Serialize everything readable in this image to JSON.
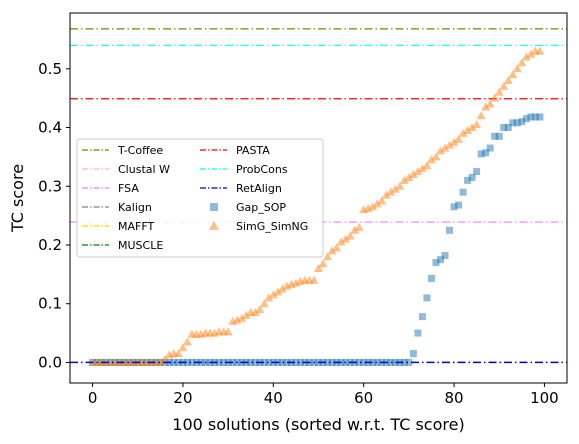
{
  "chart_data": {
    "type": "scatter",
    "xlabel": "100 solutions (sorted w.r.t. TC score)",
    "ylabel": "TC score",
    "xlim": [
      -5,
      105
    ],
    "ylim": [
      -0.035,
      0.595
    ],
    "x_ticks": [
      0,
      20,
      40,
      60,
      80,
      100
    ],
    "y_ticks": [
      0.0,
      0.1,
      0.2,
      0.3,
      0.4,
      0.5
    ],
    "x_tick_labels": [
      "0",
      "20",
      "40",
      "60",
      "80",
      "100"
    ],
    "y_tick_labels": [
      "0.0",
      "0.1",
      "0.2",
      "0.3",
      "0.4",
      "0.5"
    ],
    "grid": false,
    "legend_position": "center-left",
    "reference_lines": [
      {
        "name": "T-Coffee",
        "y": 0.568,
        "color": "#808000",
        "dash": "dashdot"
      },
      {
        "name": "Clustal W",
        "y": 0.0,
        "color": "#ffb6c1",
        "dash": "dashdot"
      },
      {
        "name": "FSA",
        "y": 0.239,
        "color": "#ee82ee",
        "dash": "dashdot"
      },
      {
        "name": "Kalign",
        "y": 0.0,
        "color": "#808080",
        "dash": "dashdot"
      },
      {
        "name": "MAFFT",
        "y": 0.0,
        "color": "#ffd700",
        "dash": "dashdot"
      },
      {
        "name": "MUSCLE",
        "y": 0.0,
        "color": "#008000",
        "dash": "dashdot"
      },
      {
        "name": "PASTA",
        "y": 0.449,
        "color": "#ff0000",
        "dash": "dashdot"
      },
      {
        "name": "ProbCons",
        "y": 0.54,
        "color": "#00ffff",
        "dash": "dashdot"
      },
      {
        "name": "RetAlign",
        "y": 0.0,
        "color": "#0000cd",
        "dash": "dashdot"
      }
    ],
    "series": [
      {
        "name": "Gap_SOP",
        "marker": "square",
        "color": "#1f77b4",
        "x": [
          0,
          1,
          2,
          3,
          4,
          5,
          6,
          7,
          8,
          9,
          10,
          11,
          12,
          13,
          14,
          15,
          16,
          17,
          18,
          19,
          20,
          21,
          22,
          23,
          24,
          25,
          26,
          27,
          28,
          29,
          30,
          31,
          32,
          33,
          34,
          35,
          36,
          37,
          38,
          39,
          40,
          41,
          42,
          43,
          44,
          45,
          46,
          47,
          48,
          49,
          50,
          51,
          52,
          53,
          54,
          55,
          56,
          57,
          58,
          59,
          60,
          61,
          62,
          63,
          64,
          65,
          66,
          67,
          68,
          69,
          70,
          71,
          72,
          73,
          74,
          75,
          76,
          77,
          78,
          79,
          80,
          81,
          82,
          83,
          84,
          85,
          86,
          87,
          88,
          89,
          90,
          91,
          92,
          93,
          94,
          95,
          96,
          97,
          98,
          99
        ],
        "y": [
          0,
          0,
          0,
          0,
          0,
          0,
          0,
          0,
          0,
          0,
          0,
          0,
          0,
          0,
          0,
          0,
          0,
          0,
          0,
          0,
          0,
          0,
          0,
          0,
          0,
          0,
          0,
          0,
          0,
          0,
          0,
          0,
          0,
          0,
          0,
          0,
          0,
          0,
          0,
          0,
          0,
          0,
          0,
          0,
          0,
          0,
          0,
          0,
          0,
          0,
          0,
          0,
          0,
          0,
          0,
          0,
          0,
          0,
          0,
          0,
          0,
          0,
          0,
          0,
          0,
          0,
          0,
          0,
          0,
          0,
          0,
          0.015,
          0.05,
          0.078,
          0.11,
          0.143,
          0.17,
          0.175,
          0.182,
          0.225,
          0.265,
          0.268,
          0.29,
          0.31,
          0.315,
          0.325,
          0.355,
          0.357,
          0.365,
          0.385,
          0.385,
          0.4,
          0.4,
          0.408,
          0.408,
          0.41,
          0.415,
          0.418,
          0.418,
          0.418
        ]
      },
      {
        "name": "SimG_SimNG",
        "marker": "triangle",
        "color": "#ff7f0e",
        "x": [
          0,
          1,
          2,
          3,
          4,
          5,
          6,
          7,
          8,
          9,
          10,
          11,
          12,
          13,
          14,
          15,
          16,
          17,
          18,
          19,
          20,
          21,
          22,
          23,
          24,
          25,
          26,
          27,
          28,
          29,
          30,
          31,
          32,
          33,
          34,
          35,
          36,
          37,
          38,
          39,
          40,
          41,
          42,
          43,
          44,
          45,
          46,
          47,
          48,
          49,
          50,
          51,
          52,
          53,
          54,
          55,
          56,
          57,
          58,
          59,
          60,
          61,
          62,
          63,
          64,
          65,
          66,
          67,
          68,
          69,
          70,
          71,
          72,
          73,
          74,
          75,
          76,
          77,
          78,
          79,
          80,
          81,
          82,
          83,
          84,
          85,
          86,
          87,
          88,
          89,
          90,
          91,
          92,
          93,
          94,
          95,
          96,
          97,
          98,
          99
        ],
        "y": [
          0,
          0,
          0,
          0,
          0,
          0,
          0,
          0,
          0,
          0,
          0,
          0,
          0,
          0,
          0,
          0,
          0.005,
          0.013,
          0.015,
          0.015,
          0.025,
          0.035,
          0.048,
          0.048,
          0.048,
          0.05,
          0.05,
          0.05,
          0.052,
          0.052,
          0.052,
          0.07,
          0.072,
          0.075,
          0.08,
          0.085,
          0.085,
          0.09,
          0.1,
          0.11,
          0.115,
          0.12,
          0.125,
          0.13,
          0.133,
          0.135,
          0.138,
          0.14,
          0.14,
          0.14,
          0.16,
          0.168,
          0.18,
          0.19,
          0.195,
          0.205,
          0.21,
          0.215,
          0.225,
          0.23,
          0.26,
          0.262,
          0.265,
          0.27,
          0.275,
          0.285,
          0.29,
          0.295,
          0.3,
          0.31,
          0.315,
          0.32,
          0.325,
          0.33,
          0.335,
          0.345,
          0.35,
          0.36,
          0.365,
          0.37,
          0.375,
          0.38,
          0.39,
          0.395,
          0.4,
          0.405,
          0.42,
          0.435,
          0.44,
          0.45,
          0.46,
          0.47,
          0.48,
          0.49,
          0.5,
          0.51,
          0.52,
          0.525,
          0.53,
          0.53
        ]
      }
    ]
  }
}
